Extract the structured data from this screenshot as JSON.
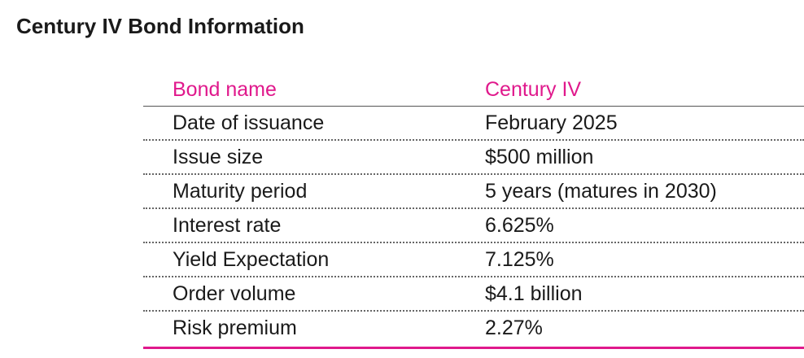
{
  "title": "Century IV Bond Information",
  "header": {
    "label": "Bond name",
    "value": "Century IV"
  },
  "rows": [
    {
      "label": "Date of issuance",
      "value": "February 2025"
    },
    {
      "label": "Issue size",
      "value": "$500 million"
    },
    {
      "label": "Maturity period",
      "value": "5 years (matures in 2030)"
    },
    {
      "label": "Interest rate",
      "value": "6.625%"
    },
    {
      "label": "Yield Expectation",
      "value": "7.125%"
    },
    {
      "label": "Order volume",
      "value": "$4.1 billion"
    },
    {
      "label": "Risk premium",
      "value": "2.27%"
    }
  ],
  "colors": {
    "accent": "#e0198c",
    "text": "#1a1a1a"
  }
}
